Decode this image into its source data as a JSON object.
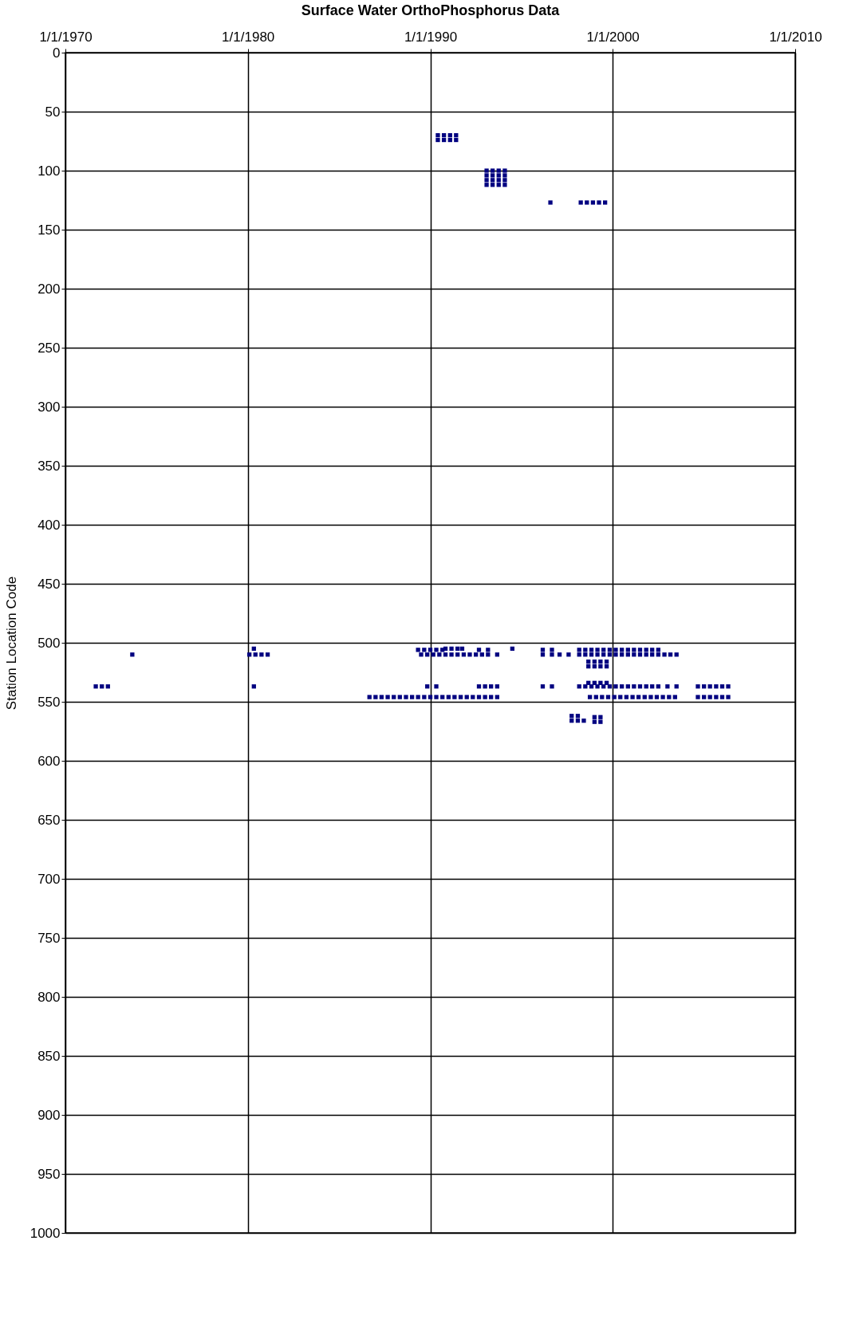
{
  "chart_data": {
    "type": "scatter",
    "title": "Surface Water OrthoPhosphorus Data",
    "ylabel": "Station Location Code",
    "xlim": [
      "1970-01-01",
      "2010-01-01"
    ],
    "xticks": [
      {
        "value": "1970-01-01",
        "label": "1/1/1970"
      },
      {
        "value": "1980-01-01",
        "label": "1/1/1980"
      },
      {
        "value": "1990-01-01",
        "label": "1/1/1990"
      },
      {
        "value": "2000-01-01",
        "label": "1/1/2000"
      },
      {
        "value": "2010-01-01",
        "label": "1/1/2010"
      }
    ],
    "ylim": [
      1000,
      0
    ],
    "yticks": [
      0,
      50,
      100,
      150,
      200,
      250,
      300,
      350,
      400,
      450,
      500,
      550,
      600,
      650,
      700,
      750,
      800,
      850,
      900,
      950,
      1000
    ],
    "grid": true,
    "legend": false,
    "marker": "square",
    "series": [
      {
        "color": "#000080",
        "x": [
          "1990-06",
          "1990-10",
          "1991-02",
          "1991-06"
        ],
        "values": [
          70,
          70,
          70,
          70
        ]
      },
      {
        "color": "#000080",
        "x": [
          "1990-06",
          "1990-10",
          "1991-02",
          "1991-06"
        ],
        "values": [
          74,
          74,
          74,
          74
        ]
      },
      {
        "color": "#000080",
        "x": [
          "1993-02",
          "1993-06",
          "1993-10",
          "1994-02"
        ],
        "values": [
          100,
          100,
          100,
          100
        ]
      },
      {
        "color": "#000080",
        "x": [
          "1993-02",
          "1993-06",
          "1993-10",
          "1994-02"
        ],
        "values": [
          104,
          104,
          104,
          104
        ]
      },
      {
        "color": "#000080",
        "x": [
          "1993-02",
          "1993-06",
          "1993-10",
          "1994-02"
        ],
        "values": [
          108,
          108,
          108,
          108
        ]
      },
      {
        "color": "#000080",
        "x": [
          "1993-02",
          "1993-06",
          "1993-10",
          "1994-02"
        ],
        "values": [
          112,
          112,
          112,
          112
        ]
      },
      {
        "color": "#000080",
        "x": [
          "1996-08",
          "1998-04",
          "1998-08",
          "1998-12",
          "1999-04",
          "1999-08"
        ],
        "values": [
          127,
          127,
          127,
          127,
          127,
          127
        ]
      },
      {
        "color": "#000080",
        "x": [
          "1980-05",
          "1990-11",
          "1991-03",
          "1991-07",
          "1991-10",
          "1994-07"
        ],
        "values": [
          505,
          505,
          505,
          505,
          505,
          505
        ]
      },
      {
        "color": "#000080",
        "x": [
          "1989-05",
          "1989-09",
          "1990-01",
          "1990-05",
          "1990-09",
          "1992-09",
          "1993-03",
          "1996-03",
          "1996-09",
          "1998-03",
          "1998-07",
          "1998-11",
          "1999-03",
          "1999-07",
          "1999-11",
          "2000-03",
          "2000-07",
          "2000-11",
          "2001-03",
          "2001-07",
          "2001-11",
          "2002-03",
          "2002-07"
        ],
        "values": [
          506,
          506,
          506,
          506,
          506,
          506,
          506,
          506,
          506,
          506,
          506,
          506,
          506,
          506,
          506,
          506,
          506,
          506,
          506,
          506,
          506,
          506,
          506
        ]
      },
      {
        "color": "#000080",
        "x": [
          "1973-09",
          "1980-02",
          "1980-06",
          "1980-10",
          "1981-02",
          "1989-07",
          "1989-11",
          "1990-03",
          "1990-07",
          "1990-11",
          "1991-03",
          "1991-07",
          "1991-11",
          "1992-03",
          "1992-07",
          "1992-11",
          "1993-03",
          "1993-09",
          "1996-03",
          "1996-09",
          "1997-02",
          "1997-08",
          "1998-03",
          "1998-07",
          "1998-11",
          "1999-03",
          "1999-07",
          "1999-11",
          "2000-03",
          "2000-07",
          "2000-11",
          "2001-03",
          "2001-07",
          "2001-11",
          "2002-03",
          "2002-07",
          "2002-11",
          "2003-03",
          "2003-07"
        ],
        "values": [
          510,
          510,
          510,
          510,
          510,
          510,
          510,
          510,
          510,
          510,
          510,
          510,
          510,
          510,
          510,
          510,
          510,
          510,
          510,
          510,
          510,
          510,
          510,
          510,
          510,
          510,
          510,
          510,
          510,
          510,
          510,
          510,
          510,
          510,
          510,
          510,
          510,
          510,
          510
        ]
      },
      {
        "color": "#000080",
        "x": [
          "1998-09",
          "1999-01",
          "1999-05",
          "1999-09"
        ],
        "values": [
          516,
          516,
          516,
          516
        ]
      },
      {
        "color": "#000080",
        "x": [
          "1998-09",
          "1999-01",
          "1999-05",
          "1999-09"
        ],
        "values": [
          520,
          520,
          520,
          520
        ]
      },
      {
        "color": "#000080",
        "x": [
          "1998-09",
          "1999-01",
          "1999-05",
          "1999-09"
        ],
        "values": [
          534,
          534,
          534,
          534
        ]
      },
      {
        "color": "#000080",
        "x": [
          "1971-09",
          "1972-01",
          "1972-05",
          "1980-05",
          "1989-11",
          "1990-05",
          "1992-09",
          "1993-01",
          "1993-05",
          "1993-09",
          "1996-03",
          "1996-09",
          "1998-03",
          "1998-07",
          "1998-11",
          "1999-03",
          "1999-07",
          "1999-11",
          "2000-03",
          "2000-07",
          "2000-11",
          "2001-03",
          "2001-07",
          "2001-11",
          "2002-03",
          "2002-07",
          "2003-01",
          "2003-07",
          "2004-09",
          "2005-01",
          "2005-05",
          "2005-09",
          "2006-01",
          "2006-05"
        ],
        "values": [
          537,
          537,
          537,
          537,
          537,
          537,
          537,
          537,
          537,
          537,
          537,
          537,
          537,
          537,
          537,
          537,
          537,
          537,
          537,
          537,
          537,
          537,
          537,
          537,
          537,
          537,
          537,
          537,
          537,
          537,
          537,
          537,
          537,
          537
        ]
      },
      {
        "color": "#000080",
        "x": [
          "1986-09",
          "1987-01",
          "1987-05",
          "1987-09",
          "1988-01",
          "1988-05",
          "1988-09",
          "1989-01",
          "1989-05",
          "1989-09",
          "1990-01",
          "1990-05",
          "1990-09",
          "1991-01",
          "1991-05",
          "1991-09",
          "1992-01",
          "1992-05",
          "1992-09",
          "1993-01",
          "1993-05",
          "1993-09",
          "1998-10",
          "1999-02",
          "1999-06",
          "1999-10",
          "2000-02",
          "2000-06",
          "2000-10",
          "2001-02",
          "2001-06",
          "2001-10",
          "2002-02",
          "2002-06",
          "2002-10",
          "2003-02",
          "2003-06",
          "2004-09",
          "2005-01",
          "2005-05",
          "2005-09",
          "2006-01",
          "2006-05"
        ],
        "values": [
          546,
          546,
          546,
          546,
          546,
          546,
          546,
          546,
          546,
          546,
          546,
          546,
          546,
          546,
          546,
          546,
          546,
          546,
          546,
          546,
          546,
          546,
          546,
          546,
          546,
          546,
          546,
          546,
          546,
          546,
          546,
          546,
          546,
          546,
          546,
          546,
          546,
          546,
          546,
          546,
          546,
          546,
          546
        ]
      },
      {
        "color": "#000080",
        "x": [
          "1997-10",
          "1998-02",
          "1999-01",
          "1999-05"
        ],
        "values": [
          562,
          562,
          563,
          563
        ]
      },
      {
        "color": "#000080",
        "x": [
          "1997-10",
          "1998-02",
          "1998-06",
          "1999-01",
          "1999-05"
        ],
        "values": [
          566,
          566,
          566,
          567,
          567
        ]
      }
    ]
  }
}
